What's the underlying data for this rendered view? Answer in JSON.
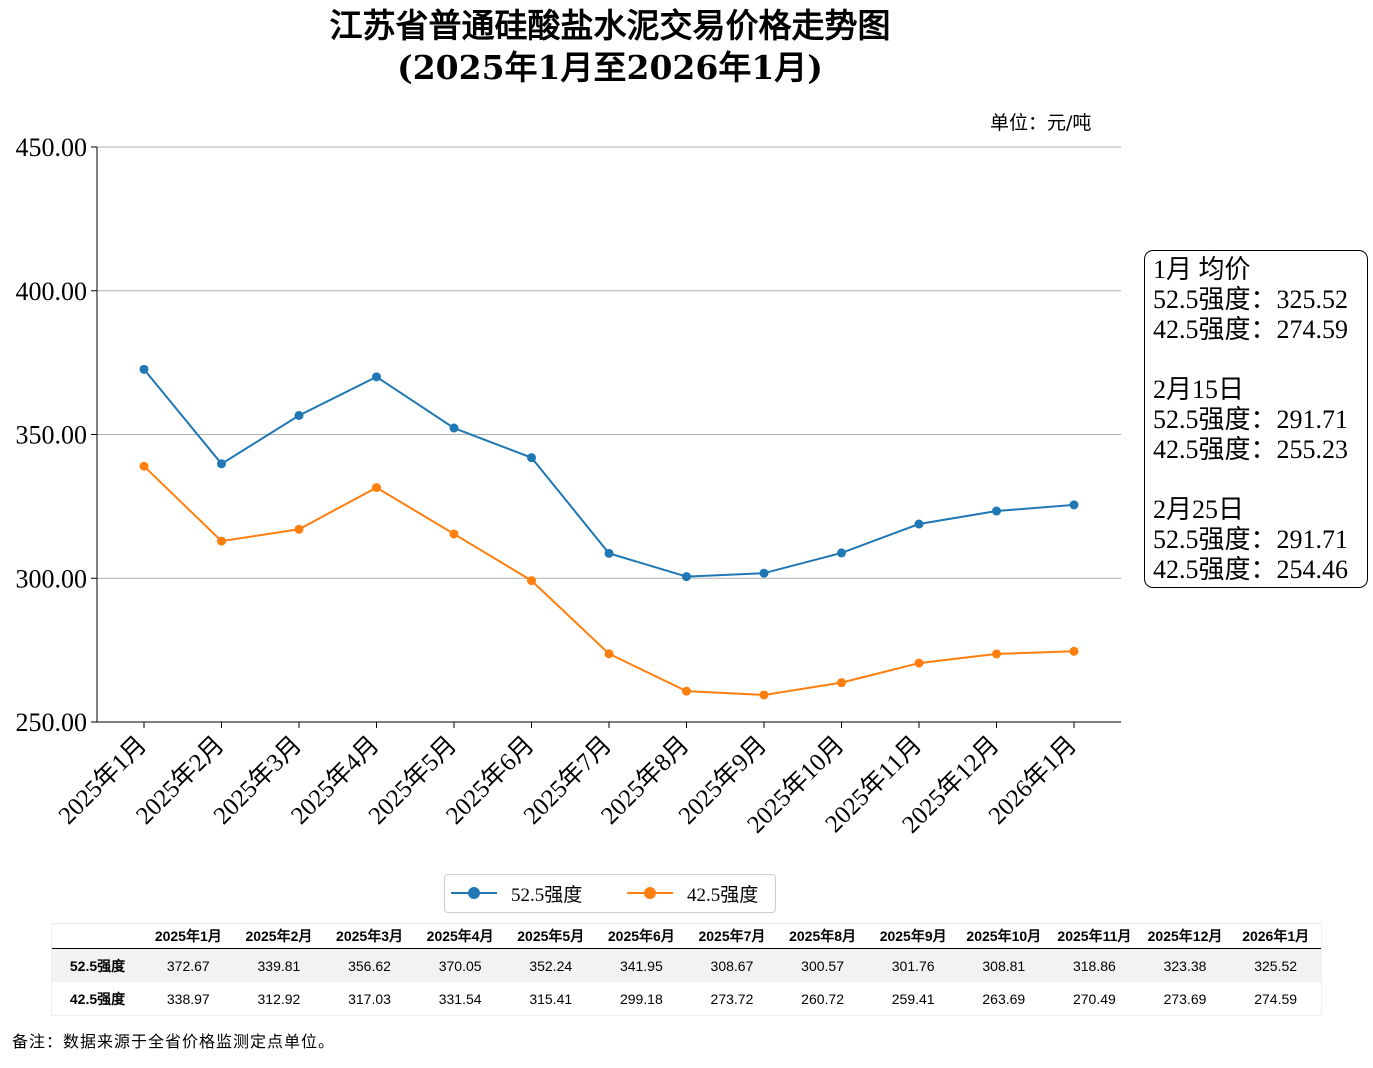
{
  "title": {
    "line1": "江苏省普通硅酸盐水泥交易价格走势图",
    "line2": "(2025年1月至2026年1月)"
  },
  "unit_label": "单位：元/吨",
  "colors": {
    "series_52_5": "#1f77b4",
    "series_42_5": "#ff7f0e",
    "grid": "#b0b0b0",
    "table_stripe": "#f2f2f2"
  },
  "chart_data": {
    "type": "line",
    "title": "江苏省普通硅酸盐水泥交易价格走势图 (2025年1月至2026年1月)",
    "xlabel": "",
    "ylabel": "",
    "ylim": [
      250,
      450
    ],
    "yticks": [
      "250.00",
      "300.00",
      "350.00",
      "400.00",
      "450.00"
    ],
    "ytick_values": [
      250,
      300,
      350,
      400,
      450
    ],
    "grid": "horizontal",
    "legend_position": "bottom-center",
    "categories": [
      "2025年1月",
      "2025年2月",
      "2025年3月",
      "2025年4月",
      "2025年5月",
      "2025年6月",
      "2025年7月",
      "2025年8月",
      "2025年9月",
      "2025年10月",
      "2025年11月",
      "2025年12月",
      "2026年1月"
    ],
    "series": [
      {
        "name": "52.5强度",
        "color": "#1f77b4",
        "values": [
          372.67,
          339.81,
          356.62,
          370.05,
          352.24,
          341.95,
          308.67,
          300.57,
          301.76,
          308.81,
          318.86,
          323.38,
          325.52
        ]
      },
      {
        "name": "42.5强度",
        "color": "#ff7f0e",
        "values": [
          338.97,
          312.92,
          317.03,
          331.54,
          315.41,
          299.18,
          273.72,
          260.72,
          259.41,
          263.69,
          270.49,
          273.69,
          274.59
        ]
      }
    ]
  },
  "annotation": {
    "lines": [
      "1月 均价",
      "52.5强度：325.52",
      "42.5强度：274.59",
      "",
      "2月15日",
      "52.5强度：291.71",
      "42.5强度：255.23",
      "",
      "2月25日",
      "52.5强度：291.71",
      "42.5强度：254.46"
    ]
  },
  "legend": {
    "items": [
      "52.5强度",
      "42.5强度"
    ]
  },
  "table": {
    "headers": [
      "",
      "2025年1月",
      "2025年2月",
      "2025年3月",
      "2025年4月",
      "2025年5月",
      "2025年6月",
      "2025年7月",
      "2025年8月",
      "2025年9月",
      "2025年10月",
      "2025年11月",
      "2025年12月",
      "2026年1月"
    ],
    "rows": [
      {
        "label": "52.5强度",
        "cells": [
          "372.67",
          "339.81",
          "356.62",
          "370.05",
          "352.24",
          "341.95",
          "308.67",
          "300.57",
          "301.76",
          "308.81",
          "318.86",
          "323.38",
          "325.52"
        ]
      },
      {
        "label": "42.5强度",
        "cells": [
          "338.97",
          "312.92",
          "317.03",
          "331.54",
          "315.41",
          "299.18",
          "273.72",
          "260.72",
          "259.41",
          "263.69",
          "270.49",
          "273.69",
          "274.59"
        ]
      }
    ]
  },
  "footnote": "备注：数据来源于全省价格监测定点单位。"
}
